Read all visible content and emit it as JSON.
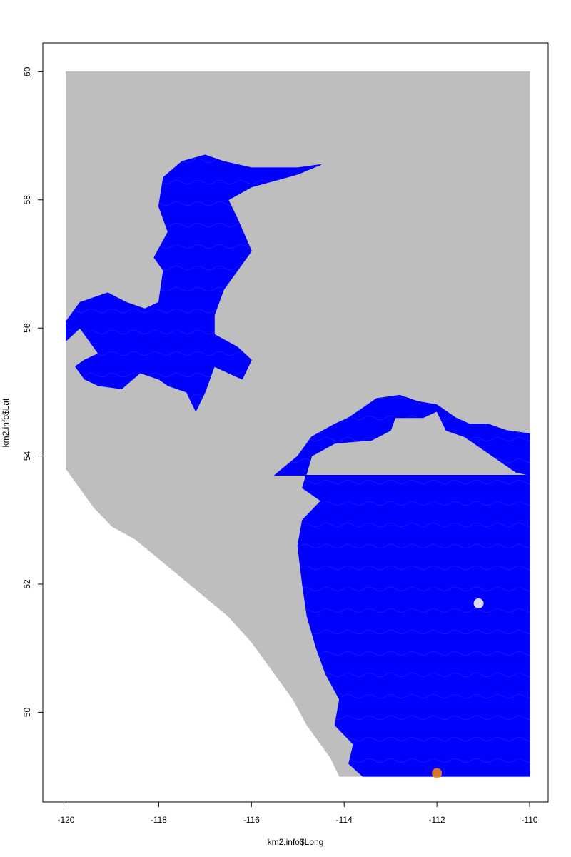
{
  "chart_data": {
    "type": "scatter",
    "title": "",
    "xlabel": "km2.info$Long",
    "ylabel": "km2.info$Lat",
    "xlim": [
      -120.5,
      -109.6
    ],
    "ylim": [
      48.6,
      60.45
    ],
    "xticks": [
      -120,
      -118,
      -116,
      -114,
      -112,
      -110
    ],
    "yticks": [
      50,
      52,
      54,
      56,
      58,
      60
    ],
    "xtick_labels": [
      "-120",
      "-118",
      "-116",
      "-114",
      "-112",
      "-110"
    ],
    "ytick_labels": [
      "50",
      "52",
      "54",
      "56",
      "58",
      "60"
    ],
    "grid": false,
    "legend": "none",
    "colors": {
      "land": "#bebebe",
      "water": "#0000ff",
      "highlight": "#ffffff",
      "hotspot": "#ff8c00"
    },
    "regions": [
      {
        "name": "land-region",
        "color": "#bebebe",
        "polygon": [
          [
            -120,
            60
          ],
          [
            -110,
            60
          ],
          [
            -110,
            49
          ],
          [
            -114.1,
            49
          ],
          [
            -114.3,
            49.3
          ],
          [
            -114.6,
            49.6
          ],
          [
            -114.8,
            49.8
          ],
          [
            -115.1,
            50.2
          ],
          [
            -115.6,
            50.7
          ],
          [
            -116.0,
            51.1
          ],
          [
            -116.5,
            51.5
          ],
          [
            -117.0,
            51.8
          ],
          [
            -117.5,
            52.1
          ],
          [
            -118.0,
            52.4
          ],
          [
            -118.5,
            52.7
          ],
          [
            -119.0,
            52.9
          ],
          [
            -119.4,
            53.2
          ],
          [
            -119.7,
            53.5
          ],
          [
            -120,
            53.8
          ]
        ]
      },
      {
        "name": "water-region-north",
        "color": "#0000ff",
        "polygon": [
          [
            -120,
            55.8
          ],
          [
            -120,
            56.1
          ],
          [
            -119.7,
            56.4
          ],
          [
            -119.1,
            56.55
          ],
          [
            -118.7,
            56.4
          ],
          [
            -118.3,
            56.3
          ],
          [
            -118.0,
            56.4
          ],
          [
            -117.9,
            56.9
          ],
          [
            -118.1,
            57.1
          ],
          [
            -117.8,
            57.5
          ],
          [
            -118.0,
            57.9
          ],
          [
            -117.9,
            58.35
          ],
          [
            -117.5,
            58.6
          ],
          [
            -117.0,
            58.7
          ],
          [
            -116.6,
            58.6
          ],
          [
            -116.0,
            58.5
          ],
          [
            -115.5,
            58.5
          ],
          [
            -115.0,
            58.5
          ],
          [
            -114.5,
            58.55
          ],
          [
            -115.0,
            58.4
          ],
          [
            -115.5,
            58.3
          ],
          [
            -116.0,
            58.2
          ],
          [
            -116.5,
            58.0
          ],
          [
            -116.3,
            57.7
          ],
          [
            -116.0,
            57.2
          ],
          [
            -116.3,
            56.9
          ],
          [
            -116.6,
            56.6
          ],
          [
            -116.8,
            56.2
          ],
          [
            -116.8,
            55.9
          ],
          [
            -116.3,
            55.7
          ],
          [
            -116.0,
            55.5
          ],
          [
            -116.2,
            55.2
          ],
          [
            -116.8,
            55.4
          ],
          [
            -117.0,
            55.0
          ],
          [
            -117.2,
            54.7
          ],
          [
            -117.4,
            55.0
          ],
          [
            -117.8,
            55.1
          ],
          [
            -118.0,
            55.2
          ],
          [
            -118.4,
            55.3
          ],
          [
            -118.8,
            55.05
          ],
          [
            -119.3,
            55.1
          ],
          [
            -119.6,
            55.2
          ],
          [
            -119.8,
            55.4
          ],
          [
            -119.6,
            55.5
          ],
          [
            -119.3,
            55.6
          ],
          [
            -119.5,
            55.8
          ],
          [
            -119.7,
            56.0
          ],
          [
            -120,
            55.8
          ]
        ]
      },
      {
        "name": "water-region-south",
        "color": "#0000ff",
        "polygon": [
          [
            -115.5,
            53.7
          ],
          [
            -115.0,
            54.0
          ],
          [
            -114.7,
            54.3
          ],
          [
            -114.2,
            54.5
          ],
          [
            -113.9,
            54.6
          ],
          [
            -113.3,
            54.9
          ],
          [
            -112.8,
            54.95
          ],
          [
            -112.4,
            54.85
          ],
          [
            -112.0,
            54.8
          ],
          [
            -111.6,
            54.6
          ],
          [
            -111.3,
            54.5
          ],
          [
            -110.9,
            54.5
          ],
          [
            -110.5,
            54.4
          ],
          [
            -110,
            54.35
          ],
          [
            -110,
            53.7
          ],
          [
            -110.3,
            53.75
          ],
          [
            -110.6,
            53.9
          ],
          [
            -111.0,
            54.1
          ],
          [
            -111.4,
            54.3
          ],
          [
            -111.8,
            54.4
          ],
          [
            -112.0,
            54.7
          ],
          [
            -112.3,
            54.6
          ],
          [
            -112.9,
            54.6
          ],
          [
            -113.0,
            54.4
          ],
          [
            -113.4,
            54.25
          ],
          [
            -114.2,
            54.2
          ],
          [
            -114.7,
            54.0
          ],
          [
            -114.9,
            53.5
          ],
          [
            -114.5,
            53.3
          ],
          [
            -114.9,
            53.0
          ],
          [
            -115.0,
            52.6
          ],
          [
            -114.9,
            52.0
          ],
          [
            -114.8,
            51.5
          ],
          [
            -114.6,
            51.0
          ],
          [
            -114.4,
            50.6
          ],
          [
            -114.1,
            50.2
          ],
          [
            -114.2,
            49.8
          ],
          [
            -113.8,
            49.5
          ],
          [
            -113.9,
            49.2
          ],
          [
            -113.6,
            49.0
          ],
          [
            -110,
            49.0
          ],
          [
            -110,
            53.7
          ]
        ]
      }
    ],
    "highlights": [
      {
        "name": "bright-spot",
        "x": -111.1,
        "y": 51.7,
        "color": "#ffffff"
      },
      {
        "name": "hotspot",
        "x": -112.0,
        "y": 49.05,
        "color": "#ff8c00"
      }
    ]
  }
}
